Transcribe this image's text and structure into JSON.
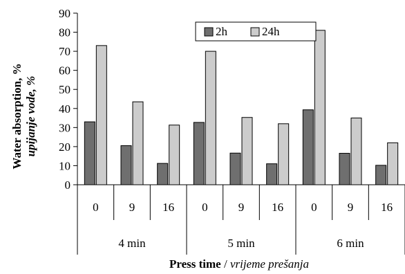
{
  "chart_data": {
    "type": "bar",
    "title": "",
    "ylabel_bold": "Water absorption, %",
    "ylabel_italic": "upijanje vode, %",
    "xlabel_bold": "Press time",
    "xlabel_sep": " / ",
    "xlabel_italic": "vrijeme prešanja",
    "ylim": [
      0,
      90
    ],
    "yticks": [
      0,
      10,
      20,
      30,
      40,
      50,
      60,
      70,
      80,
      90
    ],
    "groups": [
      "4 min",
      "5 min",
      "6 min"
    ],
    "categories": [
      "0",
      "9",
      "16",
      "0",
      "9",
      "16",
      "0",
      "9",
      "16"
    ],
    "series": [
      {
        "name": "2h",
        "color": "#6f6f6f",
        "values": [
          33,
          20.5,
          11.2,
          32.7,
          16.6,
          11,
          39.3,
          16.5,
          10.2
        ]
      },
      {
        "name": "24h",
        "color": "#cccccc",
        "values": [
          73,
          43.5,
          31.3,
          70,
          35.3,
          32,
          81,
          35,
          22
        ]
      }
    ],
    "legend": "top-center",
    "grid": false
  }
}
